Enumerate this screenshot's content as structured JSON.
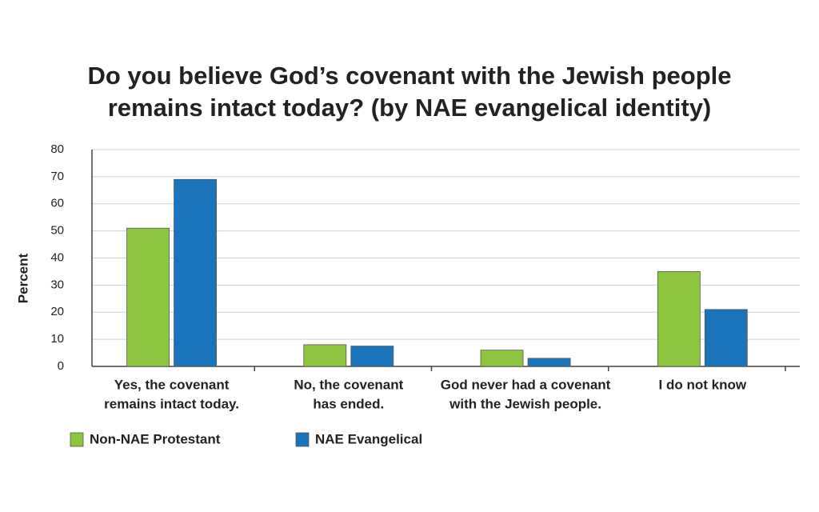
{
  "chart_data": {
    "type": "bar",
    "title": [
      "Do you believe God’s covenant with the Jewish people",
      "remains intact today? (by NAE evangelical identity)"
    ],
    "ylabel": "Percent",
    "categories": [
      [
        "Yes, the covenant",
        "remains intact today."
      ],
      [
        "No, the covenant",
        "has ended."
      ],
      [
        "God never had a covenant",
        "with the Jewish people."
      ],
      [
        "I do not know"
      ]
    ],
    "series": [
      {
        "name": "Non-NAE Protestant",
        "color": "#8cc63f",
        "values": [
          51,
          8,
          6,
          35
        ]
      },
      {
        "name": "NAE Evangelical",
        "color": "#1b75bc",
        "values": [
          69,
          7.5,
          3,
          21
        ]
      }
    ],
    "ylim": [
      0,
      80
    ],
    "yticks": [
      0,
      10,
      20,
      30,
      40,
      50,
      60,
      70,
      80
    ],
    "grid": true
  }
}
